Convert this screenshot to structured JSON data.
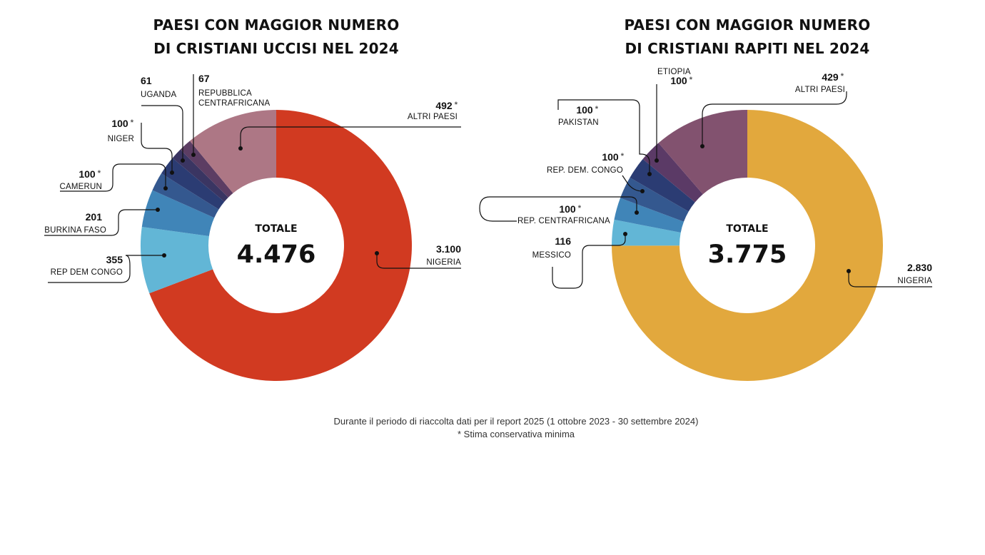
{
  "chart_data": [
    {
      "type": "donut",
      "title": "PAESI CON MAGGIOR NUMERO DI CRISTIANI UCCISI NEL 2024",
      "title_lines": [
        "PAESI CON MAGGIOR NUMERO",
        "DI CRISTIANI UCCISI NEL 2024"
      ],
      "center_label": "TOTALE",
      "center_value": "4.476",
      "total": 4476,
      "slices": [
        {
          "name": "NIGERIA",
          "value": 3100,
          "display": "3.100",
          "star": false,
          "color": "#d13a21"
        },
        {
          "name": "REP DEM CONGO",
          "value": 355,
          "display": "355",
          "star": false,
          "color": "#62b6d6"
        },
        {
          "name": "BURKINA FASO",
          "value": 201,
          "display": "201",
          "star": false,
          "color": "#4085b8"
        },
        {
          "name": "CAMERUN",
          "value": 100,
          "display": "100",
          "star": true,
          "color": "#34588f"
        },
        {
          "name": "NIGER",
          "value": 100,
          "display": "100",
          "star": true,
          "color": "#2b3c73"
        },
        {
          "name": "UGANDA",
          "value": 61,
          "display": "61",
          "star": false,
          "color": "#3a3562"
        },
        {
          "name": "REPUBBLICA CENTRAFRICANA",
          "name_lines": [
            "REPUBBLICA",
            "CENTRAFRICANA"
          ],
          "value": 67,
          "display": "67",
          "star": false,
          "color": "#5c3d63"
        },
        {
          "name": "ALTRI PAESI",
          "value": 492,
          "display": "492",
          "star": true,
          "color": "#ad7785"
        }
      ]
    },
    {
      "type": "donut",
      "title": "PAESI CON MAGGIOR NUMERO DI CRISTIANI RAPITI NEL 2024",
      "title_lines": [
        "PAESI CON MAGGIOR NUMERO",
        "DI CRISTIANI RAPITI NEL 2024"
      ],
      "center_label": "TOTALE",
      "center_value": "3.775",
      "total": 3775,
      "slices": [
        {
          "name": "NIGERIA",
          "value": 2830,
          "display": "2.830",
          "star": false,
          "color": "#e2a83d"
        },
        {
          "name": "MESSICO",
          "value": 116,
          "display": "116",
          "star": false,
          "color": "#62b6d6"
        },
        {
          "name": "REP. CENTRAFRICANA",
          "value": 100,
          "display": "100",
          "star": true,
          "color": "#4085b8"
        },
        {
          "name": "REP. DEM. CONGO",
          "value": 100,
          "display": "100",
          "star": true,
          "color": "#34588f"
        },
        {
          "name": "PAKISTAN",
          "value": 100,
          "display": "100",
          "star": true,
          "color": "#2b3c73"
        },
        {
          "name": "ETIOPIA",
          "value": 100,
          "display": "100",
          "star": true,
          "color": "#5b3a66"
        },
        {
          "name": "ALTRI PAESI",
          "value": 429,
          "display": "429",
          "star": true,
          "color": "#82526f"
        }
      ]
    }
  ],
  "star_symbol": "*",
  "footer": {
    "line1": "Durante il periodo di riaccolta dati per il report 2025 (1 ottobre 2023 - 30 settembre 2024)",
    "line2": "* Stima conservativa minima"
  }
}
